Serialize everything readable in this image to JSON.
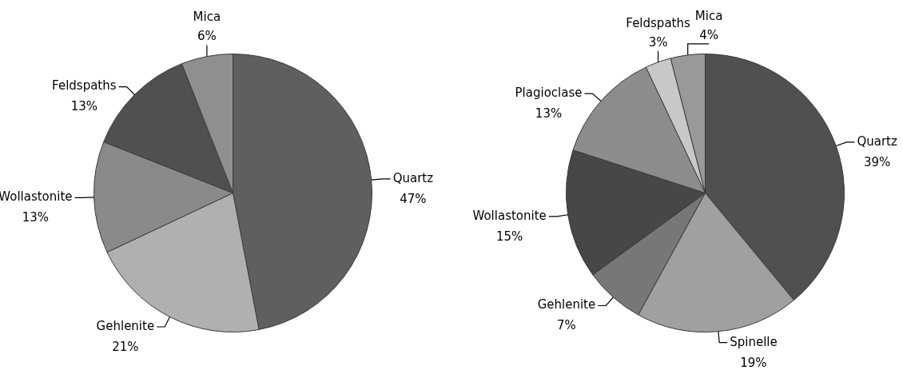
{
  "chart_data": [
    {
      "type": "pie",
      "categories": [
        "Quartz",
        "Gehlenite",
        "Wollastonite",
        "Feldspaths",
        "Mica"
      ],
      "values": [
        47,
        21,
        13,
        13,
        6
      ],
      "value_labels": [
        "47%",
        "21%",
        "13%",
        "13%",
        "6%"
      ],
      "colors": [
        "#5f5f5f",
        "#b0b0b0",
        "#8a8a8a",
        "#505050",
        "#8f8f8f"
      ],
      "legend": false
    },
    {
      "type": "pie",
      "categories": [
        "Quartz",
        "Spinelle",
        "Gehlenite",
        "Wollastonite",
        "Plagioclase",
        "Feldspaths",
        "Mica"
      ],
      "values": [
        39,
        19,
        7,
        15,
        13,
        3,
        4
      ],
      "value_labels": [
        "39%",
        "19%",
        "7%",
        "15%",
        "13%",
        "3%",
        "4%"
      ],
      "colors": [
        "#505050",
        "#a0a0a0",
        "#777777",
        "#474747",
        "#8c8c8c",
        "#c8c8c8",
        "#999999"
      ],
      "legend": false
    }
  ]
}
